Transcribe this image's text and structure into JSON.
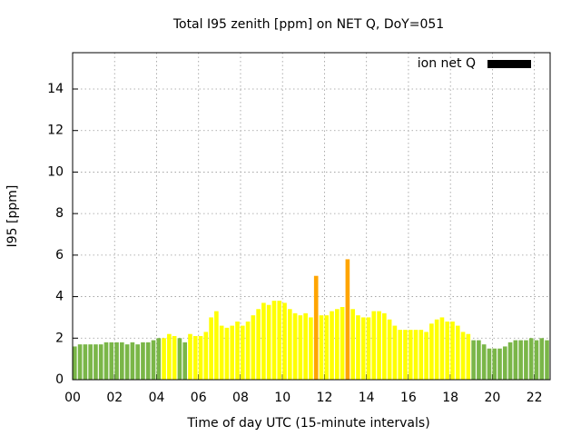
{
  "chart_data": {
    "type": "bar",
    "title": "Total I95 zenith [ppm] on NET Q, DoY=051",
    "x_label": "Time of day UTC (15-minute intervals)",
    "y_label": "I95 [ppm]",
    "x": [
      0,
      0.25,
      0.5,
      0.75,
      1,
      1.25,
      1.5,
      1.75,
      2,
      2.25,
      2.5,
      2.75,
      3,
      3.25,
      3.5,
      3.75,
      4,
      4.25,
      4.5,
      4.75,
      5,
      5.25,
      5.5,
      5.75,
      6,
      6.25,
      6.5,
      6.75,
      7,
      7.25,
      7.5,
      7.75,
      8,
      8.25,
      8.5,
      8.75,
      9,
      9.25,
      9.5,
      9.75,
      10,
      10.25,
      10.5,
      10.75,
      11,
      11.25,
      11.5,
      11.75,
      12,
      12.25,
      12.5,
      12.75,
      13,
      13.25,
      13.5,
      13.75,
      14,
      14.25,
      14.5,
      14.75,
      15,
      15.25,
      15.5,
      15.75,
      16,
      16.25,
      16.5,
      16.75,
      17,
      17.25,
      17.5,
      17.75,
      18,
      18.25,
      18.5,
      18.75,
      19,
      19.25,
      19.5,
      19.75,
      20,
      20.25,
      20.5,
      20.75,
      21,
      21.25,
      21.5,
      21.75,
      22,
      22.25,
      22.5
    ],
    "series": [
      {
        "name": "ion net Q",
        "color": "#000000",
        "values": [
          1.6,
          1.7,
          1.7,
          1.7,
          1.7,
          1.7,
          1.8,
          1.8,
          1.8,
          1.8,
          1.7,
          1.8,
          1.7,
          1.8,
          1.8,
          1.9,
          2.0,
          2.0,
          2.2,
          2.1,
          2.0,
          1.8,
          2.2,
          2.1,
          2.1,
          2.3,
          3.0,
          3.3,
          2.6,
          2.5,
          2.6,
          2.8,
          2.6,
          2.8,
          3.1,
          3.4,
          3.7,
          3.6,
          3.8,
          3.8,
          3.7,
          3.4,
          3.2,
          3.1,
          3.2,
          3.0,
          5.0,
          3.1,
          3.1,
          3.3,
          3.4,
          3.5,
          5.8,
          3.4,
          3.1,
          3.0,
          3.0,
          3.3,
          3.3,
          3.2,
          2.9,
          2.6,
          2.4,
          2.4,
          2.4,
          2.4,
          2.4,
          2.3,
          2.7,
          2.9,
          3.0,
          2.8,
          2.8,
          2.6,
          2.3,
          2.2,
          1.9,
          1.9,
          1.7,
          1.5,
          1.5,
          1.5,
          1.6,
          1.8,
          1.9,
          1.9,
          1.9,
          2.0,
          1.9,
          2.0,
          1.9
        ]
      }
    ],
    "bar_colors": [
      "#7ab648",
      "#7ab648",
      "#7ab648",
      "#7ab648",
      "#7ab648",
      "#7ab648",
      "#7ab648",
      "#7ab648",
      "#7ab648",
      "#7ab648",
      "#7ab648",
      "#7ab648",
      "#7ab648",
      "#7ab648",
      "#7ab648",
      "#7ab648",
      "#7ab648",
      "#ffff00",
      "#ffff00",
      "#ffff00",
      "#7ab648",
      "#7ab648",
      "#ffff00",
      "#ffff00",
      "#ffff00",
      "#ffff00",
      "#ffff00",
      "#ffff00",
      "#ffff00",
      "#ffff00",
      "#ffff00",
      "#ffff00",
      "#ffff00",
      "#ffff00",
      "#ffff00",
      "#ffff00",
      "#ffff00",
      "#ffff00",
      "#ffff00",
      "#ffff00",
      "#ffff00",
      "#ffff00",
      "#ffff00",
      "#ffff00",
      "#ffff00",
      "#ffff00",
      "#ffa500",
      "#ffff00",
      "#ffff00",
      "#ffff00",
      "#ffff00",
      "#ffff00",
      "#ffa500",
      "#ffff00",
      "#ffff00",
      "#ffff00",
      "#ffff00",
      "#ffff00",
      "#ffff00",
      "#ffff00",
      "#ffff00",
      "#ffff00",
      "#ffff00",
      "#ffff00",
      "#ffff00",
      "#ffff00",
      "#ffff00",
      "#ffff00",
      "#ffff00",
      "#ffff00",
      "#ffff00",
      "#ffff00",
      "#ffff00",
      "#ffff00",
      "#ffff00",
      "#ffff00",
      "#7ab648",
      "#7ab648",
      "#7ab648",
      "#7ab648",
      "#7ab648",
      "#7ab648",
      "#7ab648",
      "#7ab648",
      "#7ab648",
      "#7ab648",
      "#7ab648",
      "#7ab648",
      "#7ab648",
      "#7ab648",
      "#7ab648"
    ],
    "bar_width": 0.2,
    "xlim": [
      0,
      22.75
    ],
    "ylim": [
      0,
      15.75
    ],
    "xticks": [
      {
        "value": 0,
        "label": "00"
      },
      {
        "value": 2,
        "label": "02"
      },
      {
        "value": 4,
        "label": "04"
      },
      {
        "value": 6,
        "label": "06"
      },
      {
        "value": 8,
        "label": "08"
      },
      {
        "value": 10,
        "label": "10"
      },
      {
        "value": 12,
        "label": "12"
      },
      {
        "value": 14,
        "label": "14"
      },
      {
        "value": 16,
        "label": "16"
      },
      {
        "value": 18,
        "label": "18"
      },
      {
        "value": 20,
        "label": "20"
      },
      {
        "value": 22,
        "label": "22"
      }
    ],
    "yticks": [
      0,
      2,
      4,
      6,
      8,
      10,
      12,
      14
    ],
    "grid": true,
    "legend": "top-right"
  }
}
